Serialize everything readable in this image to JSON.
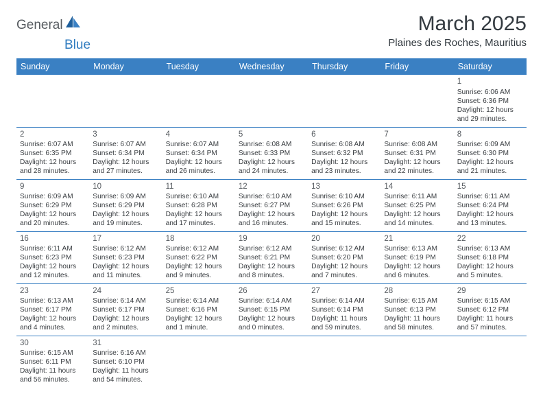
{
  "brand": {
    "general": "General",
    "blue": "Blue"
  },
  "title": "March 2025",
  "location": "Plaines des Roches, Mauritius",
  "colors": {
    "header_bg": "#3a80c3",
    "header_text": "#ffffff",
    "border": "#3a80c3",
    "text": "#3a3e42",
    "brand_gray": "#555a5f",
    "brand_blue": "#2f7bbf",
    "background": "#ffffff"
  },
  "day_headers": [
    "Sunday",
    "Monday",
    "Tuesday",
    "Wednesday",
    "Thursday",
    "Friday",
    "Saturday"
  ],
  "weeks": [
    [
      null,
      null,
      null,
      null,
      null,
      null,
      {
        "n": "1",
        "sr": "Sunrise: 6:06 AM",
        "ss": "Sunset: 6:36 PM",
        "d1": "Daylight: 12 hours",
        "d2": "and 29 minutes."
      }
    ],
    [
      {
        "n": "2",
        "sr": "Sunrise: 6:07 AM",
        "ss": "Sunset: 6:35 PM",
        "d1": "Daylight: 12 hours",
        "d2": "and 28 minutes."
      },
      {
        "n": "3",
        "sr": "Sunrise: 6:07 AM",
        "ss": "Sunset: 6:34 PM",
        "d1": "Daylight: 12 hours",
        "d2": "and 27 minutes."
      },
      {
        "n": "4",
        "sr": "Sunrise: 6:07 AM",
        "ss": "Sunset: 6:34 PM",
        "d1": "Daylight: 12 hours",
        "d2": "and 26 minutes."
      },
      {
        "n": "5",
        "sr": "Sunrise: 6:08 AM",
        "ss": "Sunset: 6:33 PM",
        "d1": "Daylight: 12 hours",
        "d2": "and 24 minutes."
      },
      {
        "n": "6",
        "sr": "Sunrise: 6:08 AM",
        "ss": "Sunset: 6:32 PM",
        "d1": "Daylight: 12 hours",
        "d2": "and 23 minutes."
      },
      {
        "n": "7",
        "sr": "Sunrise: 6:08 AM",
        "ss": "Sunset: 6:31 PM",
        "d1": "Daylight: 12 hours",
        "d2": "and 22 minutes."
      },
      {
        "n": "8",
        "sr": "Sunrise: 6:09 AM",
        "ss": "Sunset: 6:30 PM",
        "d1": "Daylight: 12 hours",
        "d2": "and 21 minutes."
      }
    ],
    [
      {
        "n": "9",
        "sr": "Sunrise: 6:09 AM",
        "ss": "Sunset: 6:29 PM",
        "d1": "Daylight: 12 hours",
        "d2": "and 20 minutes."
      },
      {
        "n": "10",
        "sr": "Sunrise: 6:09 AM",
        "ss": "Sunset: 6:29 PM",
        "d1": "Daylight: 12 hours",
        "d2": "and 19 minutes."
      },
      {
        "n": "11",
        "sr": "Sunrise: 6:10 AM",
        "ss": "Sunset: 6:28 PM",
        "d1": "Daylight: 12 hours",
        "d2": "and 17 minutes."
      },
      {
        "n": "12",
        "sr": "Sunrise: 6:10 AM",
        "ss": "Sunset: 6:27 PM",
        "d1": "Daylight: 12 hours",
        "d2": "and 16 minutes."
      },
      {
        "n": "13",
        "sr": "Sunrise: 6:10 AM",
        "ss": "Sunset: 6:26 PM",
        "d1": "Daylight: 12 hours",
        "d2": "and 15 minutes."
      },
      {
        "n": "14",
        "sr": "Sunrise: 6:11 AM",
        "ss": "Sunset: 6:25 PM",
        "d1": "Daylight: 12 hours",
        "d2": "and 14 minutes."
      },
      {
        "n": "15",
        "sr": "Sunrise: 6:11 AM",
        "ss": "Sunset: 6:24 PM",
        "d1": "Daylight: 12 hours",
        "d2": "and 13 minutes."
      }
    ],
    [
      {
        "n": "16",
        "sr": "Sunrise: 6:11 AM",
        "ss": "Sunset: 6:23 PM",
        "d1": "Daylight: 12 hours",
        "d2": "and 12 minutes."
      },
      {
        "n": "17",
        "sr": "Sunrise: 6:12 AM",
        "ss": "Sunset: 6:23 PM",
        "d1": "Daylight: 12 hours",
        "d2": "and 11 minutes."
      },
      {
        "n": "18",
        "sr": "Sunrise: 6:12 AM",
        "ss": "Sunset: 6:22 PM",
        "d1": "Daylight: 12 hours",
        "d2": "and 9 minutes."
      },
      {
        "n": "19",
        "sr": "Sunrise: 6:12 AM",
        "ss": "Sunset: 6:21 PM",
        "d1": "Daylight: 12 hours",
        "d2": "and 8 minutes."
      },
      {
        "n": "20",
        "sr": "Sunrise: 6:12 AM",
        "ss": "Sunset: 6:20 PM",
        "d1": "Daylight: 12 hours",
        "d2": "and 7 minutes."
      },
      {
        "n": "21",
        "sr": "Sunrise: 6:13 AM",
        "ss": "Sunset: 6:19 PM",
        "d1": "Daylight: 12 hours",
        "d2": "and 6 minutes."
      },
      {
        "n": "22",
        "sr": "Sunrise: 6:13 AM",
        "ss": "Sunset: 6:18 PM",
        "d1": "Daylight: 12 hours",
        "d2": "and 5 minutes."
      }
    ],
    [
      {
        "n": "23",
        "sr": "Sunrise: 6:13 AM",
        "ss": "Sunset: 6:17 PM",
        "d1": "Daylight: 12 hours",
        "d2": "and 4 minutes."
      },
      {
        "n": "24",
        "sr": "Sunrise: 6:14 AM",
        "ss": "Sunset: 6:17 PM",
        "d1": "Daylight: 12 hours",
        "d2": "and 2 minutes."
      },
      {
        "n": "25",
        "sr": "Sunrise: 6:14 AM",
        "ss": "Sunset: 6:16 PM",
        "d1": "Daylight: 12 hours",
        "d2": "and 1 minute."
      },
      {
        "n": "26",
        "sr": "Sunrise: 6:14 AM",
        "ss": "Sunset: 6:15 PM",
        "d1": "Daylight: 12 hours",
        "d2": "and 0 minutes."
      },
      {
        "n": "27",
        "sr": "Sunrise: 6:14 AM",
        "ss": "Sunset: 6:14 PM",
        "d1": "Daylight: 11 hours",
        "d2": "and 59 minutes."
      },
      {
        "n": "28",
        "sr": "Sunrise: 6:15 AM",
        "ss": "Sunset: 6:13 PM",
        "d1": "Daylight: 11 hours",
        "d2": "and 58 minutes."
      },
      {
        "n": "29",
        "sr": "Sunrise: 6:15 AM",
        "ss": "Sunset: 6:12 PM",
        "d1": "Daylight: 11 hours",
        "d2": "and 57 minutes."
      }
    ],
    [
      {
        "n": "30",
        "sr": "Sunrise: 6:15 AM",
        "ss": "Sunset: 6:11 PM",
        "d1": "Daylight: 11 hours",
        "d2": "and 56 minutes."
      },
      {
        "n": "31",
        "sr": "Sunrise: 6:16 AM",
        "ss": "Sunset: 6:10 PM",
        "d1": "Daylight: 11 hours",
        "d2": "and 54 minutes."
      },
      null,
      null,
      null,
      null,
      null
    ]
  ]
}
